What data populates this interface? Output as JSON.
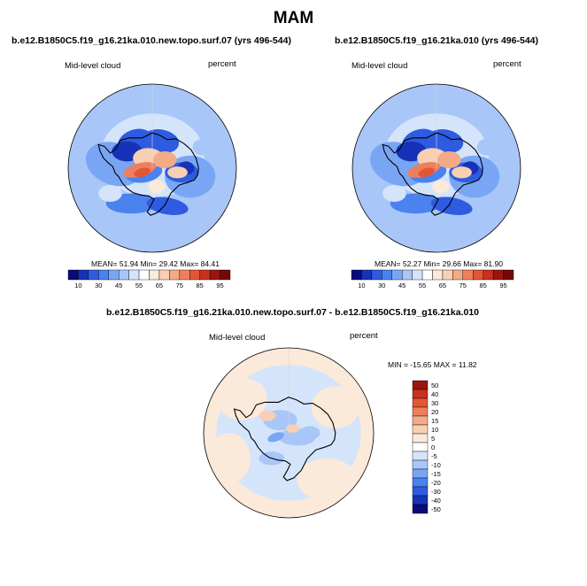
{
  "title": "MAM",
  "palette": {
    "c10": "#0a0a7a",
    "c20": "#1633b8",
    "c30": "#2e5be0",
    "c40": "#4a82ef",
    "c45": "#79a6f4",
    "c50": "#a9c6f8",
    "c55": "#d4e4fb",
    "c60": "#fbe9da",
    "c65": "#f8cfb2",
    "c70": "#f4aa86",
    "c75": "#ee7f5c",
    "c80": "#e25636",
    "c85": "#c9301e",
    "c90": "#9c1410",
    "c95": "#740808"
  },
  "panels": {
    "a": {
      "case": "b.e12.B1850C5.f19_g16.21ka.010.new.topo.surf.07 (yrs 496-544)",
      "variable": "Mid-level cloud",
      "units": "percent",
      "stats": {
        "mean_label": "MEAN=",
        "mean": "51.94",
        "min_label": "Min=",
        "min": "29.42",
        "max_label": "Max=",
        "max": "84.41"
      }
    },
    "b": {
      "case": "b.e12.B1850C5.f19_g16.21ka.010 (yrs 496-544)",
      "variable": "Mid-level cloud",
      "units": "percent",
      "stats": {
        "mean_label": "MEAN=",
        "mean": "52.27",
        "min_label": "Min=",
        "min": "29.66",
        "max_label": "Max=",
        "max": "81.90"
      }
    },
    "diff": {
      "case": "b.e12.B1850C5.f19_g16.21ka.010.new.topo.surf.07 - b.e12.B1850C5.f19_g16.21ka.010",
      "variable": "Mid-level cloud",
      "units": "percent",
      "stats": {
        "min_label": "MIN =",
        "min": "-15.65",
        "max_label": "MAX =",
        "max": "11.82"
      }
    }
  },
  "abs_colorbar": {
    "ticks": [
      "10",
      "30",
      "45",
      "55",
      "65",
      "75",
      "85",
      "95"
    ],
    "colors": [
      "#0a0a7a",
      "#1633b8",
      "#2e5be0",
      "#4a82ef",
      "#79a6f4",
      "#a9c6f8",
      "#d4e4fb",
      "#ffffff",
      "#fbe9da",
      "#f8cfb2",
      "#f4aa86",
      "#ee7f5c",
      "#e25636",
      "#c9301e",
      "#9c1410",
      "#740808"
    ]
  },
  "diff_colorbar": {
    "labels": [
      "50",
      "40",
      "30",
      "20",
      "15",
      "10",
      "5",
      "0",
      "-5",
      "-10",
      "-15",
      "-20",
      "-30",
      "-40",
      "-50"
    ],
    "colors": [
      "#9c1410",
      "#c9301e",
      "#e25636",
      "#ee7f5c",
      "#f4aa86",
      "#f8cfb2",
      "#fbe9da",
      "#ffffff",
      "#d4e4fb",
      "#a9c6f8",
      "#79a6f4",
      "#4a82ef",
      "#2e5be0",
      "#1633b8",
      "#0a0a7a"
    ]
  }
}
